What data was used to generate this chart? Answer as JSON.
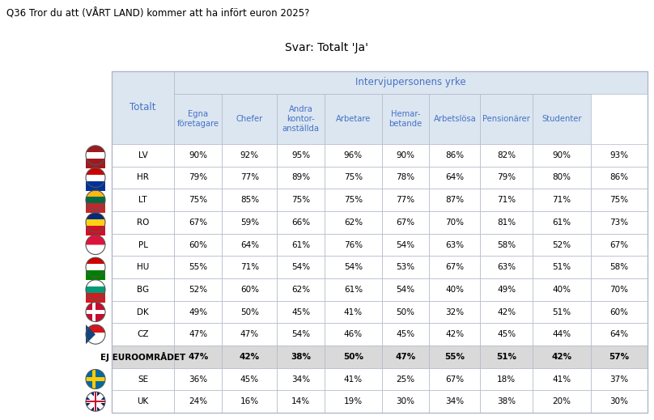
{
  "title": "Q36 Tror du att (VÅRT LAND) kommer att ha infört euron 2025?",
  "subtitle": "Svar: Totalt 'Ja'",
  "col_header_main": "Intervjupersonens yrke",
  "col_header_sub": [
    "Totalt",
    "Egna\nföretagare",
    "Chefer",
    "Andra\nkontor-\nanställda",
    "Arbetare",
    "Hemar-\nbetande",
    "Arbetslösa",
    "Pensionärer",
    "Studenter"
  ],
  "rows": [
    {
      "label": "LV",
      "flag": "LV",
      "values": [
        "90%",
        "92%",
        "95%",
        "96%",
        "90%",
        "86%",
        "82%",
        "90%",
        "93%"
      ]
    },
    {
      "label": "HR",
      "flag": "HR",
      "values": [
        "79%",
        "77%",
        "89%",
        "75%",
        "78%",
        "64%",
        "79%",
        "80%",
        "86%"
      ]
    },
    {
      "label": "LT",
      "flag": "LT",
      "values": [
        "75%",
        "85%",
        "75%",
        "75%",
        "77%",
        "87%",
        "71%",
        "71%",
        "75%"
      ]
    },
    {
      "label": "RO",
      "flag": "RO",
      "values": [
        "67%",
        "59%",
        "66%",
        "62%",
        "67%",
        "70%",
        "81%",
        "61%",
        "73%"
      ]
    },
    {
      "label": "PL",
      "flag": "PL",
      "values": [
        "60%",
        "64%",
        "61%",
        "76%",
        "54%",
        "63%",
        "58%",
        "52%",
        "67%"
      ]
    },
    {
      "label": "HU",
      "flag": "HU",
      "values": [
        "55%",
        "71%",
        "54%",
        "54%",
        "53%",
        "67%",
        "63%",
        "51%",
        "58%"
      ]
    },
    {
      "label": "BG",
      "flag": "BG",
      "values": [
        "52%",
        "60%",
        "62%",
        "61%",
        "54%",
        "40%",
        "49%",
        "40%",
        "70%"
      ]
    },
    {
      "label": "DK",
      "flag": "DK",
      "values": [
        "49%",
        "50%",
        "45%",
        "41%",
        "50%",
        "32%",
        "42%",
        "51%",
        "60%"
      ]
    },
    {
      "label": "CZ",
      "flag": "CZ",
      "values": [
        "47%",
        "47%",
        "54%",
        "46%",
        "45%",
        "42%",
        "45%",
        "44%",
        "64%"
      ]
    },
    {
      "label": "EJ EUROOMRÅDET",
      "flag": null,
      "values": [
        "47%",
        "42%",
        "38%",
        "50%",
        "47%",
        "55%",
        "51%",
        "42%",
        "57%"
      ],
      "highlight": true
    },
    {
      "label": "SE",
      "flag": "SE",
      "values": [
        "36%",
        "45%",
        "34%",
        "41%",
        "25%",
        "67%",
        "18%",
        "41%",
        "37%"
      ]
    },
    {
      "label": "UK",
      "flag": "UK",
      "values": [
        "24%",
        "16%",
        "14%",
        "19%",
        "30%",
        "34%",
        "38%",
        "20%",
        "30%"
      ]
    }
  ],
  "header_bg": "#dce6f1",
  "subheader_bg": "#dce6f1",
  "highlight_bg": "#d9d9d9",
  "normal_bg": "#ffffff",
  "border_color": "#b0b8c8",
  "header_text_color": "#4472c4",
  "text_color": "#000000",
  "title_color": "#000000",
  "subtitle_color": "#000000",
  "fig_bg": "#ffffff",
  "flag_colors": {
    "LV": {
      "top": "#9e1a20",
      "bottom": "#9e1a20",
      "mid": "#ffffff",
      "style": "h3"
    },
    "HR": {
      "top": "#cc0000",
      "bottom": "#003399",
      "mid": "#ffffff",
      "style": "h3"
    },
    "LT": {
      "top": "#fdb913",
      "bottom": "#c1272d",
      "mid": "#006a44",
      "style": "h3"
    },
    "RO": {
      "top": "#002b7f",
      "bottom": "#ce1126",
      "mid": "#fcd116",
      "style": "h3"
    },
    "PL": {
      "top": "#ffffff",
      "bottom": "#dc143c",
      "mid": null,
      "style": "h2"
    },
    "HU": {
      "top": "#cc0000",
      "bottom": "#008000",
      "mid": "#ffffff",
      "style": "h3"
    },
    "BG": {
      "top": "#ffffff",
      "bottom": "#d01c1f",
      "mid": "#009b77",
      "style": "h3"
    },
    "DK": {
      "top": "#c60c30",
      "bottom": "#c60c30",
      "mid": "#ffffff",
      "style": "cross"
    },
    "CZ": {
      "top": "#d7141a",
      "bottom": "#ffffff",
      "mid": "#11457e",
      "style": "cz"
    },
    "SE": {
      "top": "#006aa7",
      "bottom": "#006aa7",
      "mid": "#fecc02",
      "style": "cross"
    },
    "UK": {
      "top": "#012169",
      "bottom": "#012169",
      "mid": "#ffffff",
      "style": "uk"
    }
  }
}
